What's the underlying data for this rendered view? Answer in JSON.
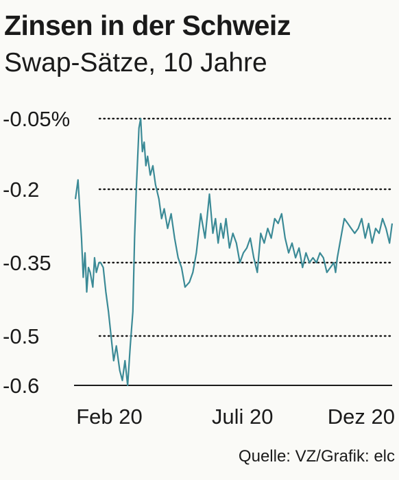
{
  "title": "Zinsen in der Schweiz",
  "subtitle": "Swap-Sätze, 10 Jahre",
  "source": "Quelle: VZ/Grafik: elc",
  "chart_data": {
    "type": "line",
    "title": "Zinsen in der Schweiz",
    "subtitle": "Swap-Sätze, 10 Jahre",
    "xlabel": "",
    "ylabel": "",
    "ylim": [
      -0.6,
      -0.05
    ],
    "grid": true,
    "line_color": "#3b8a96",
    "y_ticks": [
      {
        "value": -0.05,
        "label": "-0.05%"
      },
      {
        "value": -0.2,
        "label": "-0.2"
      },
      {
        "value": -0.35,
        "label": "-0.35"
      },
      {
        "value": -0.5,
        "label": "-0.5"
      },
      {
        "value": -0.6,
        "label": "-0.6"
      }
    ],
    "x_ticks": [
      {
        "x": "2020-02-10",
        "label": "Feb 20"
      },
      {
        "x": "2020-07-12",
        "label": "Juli 20"
      },
      {
        "x": "2020-12-08",
        "label": "Dez 20"
      }
    ],
    "x": [
      "2020-01-02",
      "2020-01-05",
      "2020-01-07",
      "2020-01-09",
      "2020-01-11",
      "2020-01-13",
      "2020-01-15",
      "2020-01-17",
      "2020-01-19",
      "2020-01-22",
      "2020-01-24",
      "2020-01-26",
      "2020-01-29",
      "2020-01-31",
      "2020-02-03",
      "2020-02-06",
      "2020-02-09",
      "2020-02-12",
      "2020-02-15",
      "2020-02-18",
      "2020-02-22",
      "2020-02-25",
      "2020-02-28",
      "2020-03-02",
      "2020-03-05",
      "2020-03-08",
      "2020-03-10",
      "2020-03-12",
      "2020-03-15",
      "2020-03-17",
      "2020-03-19",
      "2020-03-21",
      "2020-03-23",
      "2020-03-25",
      "2020-03-28",
      "2020-03-31",
      "2020-04-03",
      "2020-04-07",
      "2020-04-10",
      "2020-04-13",
      "2020-04-17",
      "2020-04-21",
      "2020-04-25",
      "2020-04-29",
      "2020-05-03",
      "2020-05-07",
      "2020-05-12",
      "2020-05-16",
      "2020-05-20",
      "2020-05-25",
      "2020-05-30",
      "2020-06-04",
      "2020-06-08",
      "2020-06-11",
      "2020-06-14",
      "2020-06-17",
      "2020-06-20",
      "2020-06-23",
      "2020-06-27",
      "2020-07-01",
      "2020-07-05",
      "2020-07-09",
      "2020-07-13",
      "2020-07-17",
      "2020-07-21",
      "2020-07-25",
      "2020-07-29",
      "2020-08-02",
      "2020-08-06",
      "2020-08-10",
      "2020-08-14",
      "2020-08-18",
      "2020-08-22",
      "2020-08-26",
      "2020-08-30",
      "2020-09-03",
      "2020-09-07",
      "2020-09-11",
      "2020-09-15",
      "2020-09-19",
      "2020-09-23",
      "2020-09-27",
      "2020-10-01",
      "2020-10-05",
      "2020-10-09",
      "2020-10-13",
      "2020-10-17",
      "2020-10-21",
      "2020-10-25",
      "2020-10-27",
      "2020-10-29",
      "2020-11-02",
      "2020-11-06",
      "2020-11-10",
      "2020-11-14",
      "2020-11-18",
      "2020-11-22",
      "2020-11-26",
      "2020-11-30",
      "2020-12-04",
      "2020-12-08",
      "2020-12-12",
      "2020-12-16",
      "2020-12-20",
      "2020-12-24",
      "2020-12-28",
      "2020-12-31"
    ],
    "series": [
      {
        "values": [
          -0.22,
          -0.18,
          -0.24,
          -0.3,
          -0.38,
          -0.33,
          -0.41,
          -0.36,
          -0.37,
          -0.4,
          -0.34,
          -0.37,
          -0.35,
          -0.35,
          -0.36,
          -0.41,
          -0.45,
          -0.5,
          -0.55,
          -0.52,
          -0.57,
          -0.59,
          -0.55,
          -0.6,
          -0.52,
          -0.45,
          -0.3,
          -0.2,
          -0.07,
          -0.05,
          -0.12,
          -0.1,
          -0.15,
          -0.13,
          -0.17,
          -0.15,
          -0.19,
          -0.22,
          -0.26,
          -0.24,
          -0.28,
          -0.25,
          -0.3,
          -0.34,
          -0.36,
          -0.4,
          -0.39,
          -0.37,
          -0.33,
          -0.25,
          -0.3,
          -0.21,
          -0.29,
          -0.26,
          -0.31,
          -0.27,
          -0.3,
          -0.26,
          -0.32,
          -0.29,
          -0.31,
          -0.35,
          -0.33,
          -0.32,
          -0.3,
          -0.34,
          -0.37,
          -0.29,
          -0.31,
          -0.28,
          -0.3,
          -0.26,
          -0.27,
          -0.25,
          -0.3,
          -0.33,
          -0.31,
          -0.34,
          -0.32,
          -0.36,
          -0.33,
          -0.35,
          -0.34,
          -0.35,
          -0.33,
          -0.34,
          -0.37,
          -0.36,
          -0.35,
          -0.37,
          -0.34,
          -0.3,
          -0.26,
          -0.27,
          -0.28,
          -0.29,
          -0.28,
          -0.26,
          -0.3,
          -0.27,
          -0.31,
          -0.28,
          -0.29,
          -0.26,
          -0.28,
          -0.31,
          -0.27
        ]
      }
    ]
  }
}
